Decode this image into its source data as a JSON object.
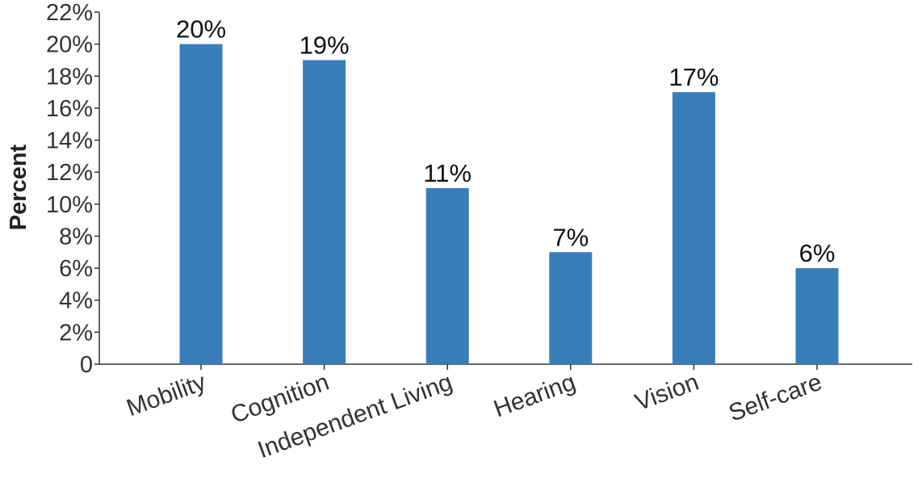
{
  "chart_data": {
    "type": "bar",
    "title": "",
    "xlabel": "",
    "ylabel": "Percent",
    "ylim": [
      0,
      22
    ],
    "yticks": [
      0,
      2,
      4,
      6,
      8,
      10,
      12,
      14,
      16,
      18,
      20,
      22
    ],
    "ytick_labels": [
      "0",
      "2%",
      "4%",
      "6%",
      "8%",
      "10%",
      "12%",
      "14%",
      "16%",
      "18%",
      "20%",
      "22%"
    ],
    "categories": [
      "Mobility",
      "Cognition",
      "Independent Living",
      "Hearing",
      "Vision",
      "Self-care"
    ],
    "values": [
      20,
      19,
      11,
      7,
      17,
      6
    ],
    "value_labels": [
      "20%",
      "19%",
      "11%",
      "7%",
      "17%",
      "6%"
    ],
    "bar_color": "#377eb8",
    "axis_color": "#333333",
    "grid": false,
    "legend": "none"
  }
}
